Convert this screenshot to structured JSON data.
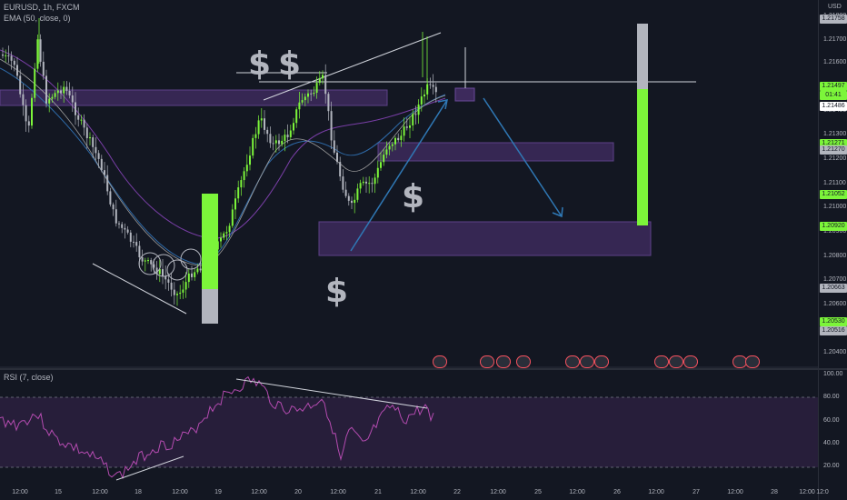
{
  "header": {
    "symbol_line": "EURUSD, 1h, FXCM",
    "ema_line": "EMA (50, close, 0)",
    "currency": "USD"
  },
  "rsi_panel": {
    "legend": "RSI (7, close)",
    "ticks": [
      "100.00",
      "80.00",
      "60.00",
      "40.00",
      "20.00"
    ]
  },
  "price_axis": {
    "ticks": [
      "1.21800",
      "1.21700",
      "1.21600",
      "1.21500",
      "1.21400",
      "1.21300",
      "1.21200",
      "1.21100",
      "1.21000",
      "1.20900",
      "1.20800",
      "1.20700",
      "1.20600",
      "1.20500",
      "1.20400"
    ],
    "tags": [
      {
        "text": "1.21758",
        "style": "gray"
      },
      {
        "text": "1.21497",
        "style": "green"
      },
      {
        "text": "01:41",
        "style": "green"
      },
      {
        "text": "1.21486",
        "style": "white"
      },
      {
        "text": "1.21271",
        "style": "green"
      },
      {
        "text": "1.21270",
        "style": "gray"
      },
      {
        "text": "1.21052",
        "style": "green"
      },
      {
        "text": "1.20920",
        "style": "green"
      },
      {
        "text": "1.20663",
        "style": "gray"
      },
      {
        "text": "1.20530",
        "style": "green"
      },
      {
        "text": "1.20516",
        "style": "gray"
      }
    ]
  },
  "time_axis": {
    "labels": [
      "12:00",
      "15",
      "12:00",
      "18",
      "12:00",
      "19",
      "12:00",
      "20",
      "12:00",
      "21",
      "12:00",
      "22",
      "12:00",
      "25",
      "12:00",
      "26",
      "12:00",
      "27",
      "12:00",
      "28",
      "12:00",
      "12:0"
    ]
  },
  "annotations": {
    "dollar_signs": [
      "$",
      "$",
      "$",
      "$"
    ]
  },
  "icons": {
    "settings": "gear-icon"
  },
  "colors": {
    "background": "#131722",
    "bull": "#7cf53a",
    "bear": "#b2b5be",
    "zone": "#4a2f6b",
    "rsi_line": "#b44bb0",
    "arrow": "#2f78b5"
  }
}
